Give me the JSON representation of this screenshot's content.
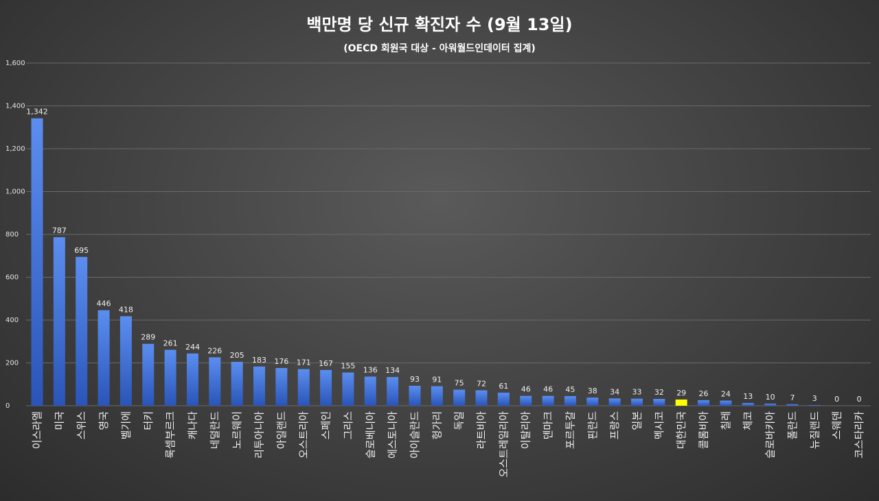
{
  "chart_data": {
    "type": "bar",
    "title": "백만명 당 신규 확진자 수 (9월 13일)",
    "subtitle": "(OECD 회원국 대상 - 아워월드인데이터 집계)",
    "categories": [
      "이스라엘",
      "미국",
      "스위스",
      "영국",
      "벨기에",
      "터키",
      "룩셈부르크",
      "캐나다",
      "네덜란드",
      "노르웨이",
      "리투아니아",
      "아일랜드",
      "오스트리아",
      "스페인",
      "그리스",
      "슬로베니아",
      "에스토니아",
      "아이슬란드",
      "헝가리",
      "독일",
      "라트비아",
      "오스트레일리아",
      "이탈리아",
      "덴마크",
      "포르투갈",
      "핀란드",
      "프랑스",
      "일본",
      "멕시코",
      "대한민국",
      "콜롬비아",
      "칠레",
      "체코",
      "슬로바키아",
      "폴란드",
      "뉴질랜드",
      "스웨덴",
      "코스타리카"
    ],
    "values": [
      1342,
      787,
      695,
      446,
      418,
      289,
      261,
      244,
      226,
      205,
      183,
      176,
      171,
      167,
      155,
      136,
      134,
      93,
      91,
      75,
      72,
      61,
      46,
      46,
      45,
      38,
      34,
      33,
      32,
      29,
      26,
      24,
      13,
      10,
      7,
      3,
      0,
      0
    ],
    "value_labels": [
      "1,342",
      "787",
      "695",
      "446",
      "418",
      "289",
      "261",
      "244",
      "226",
      "205",
      "183",
      "176",
      "171",
      "167",
      "155",
      "136",
      "134",
      "93",
      "91",
      "75",
      "72",
      "61",
      "46",
      "46",
      "45",
      "38",
      "34",
      "33",
      "32",
      "29",
      "26",
      "24",
      "13",
      "10",
      "7",
      "3",
      "0",
      "0"
    ],
    "ylim": [
      0,
      1600
    ],
    "yticks": [
      0,
      200,
      400,
      600,
      800,
      1000,
      1200,
      1400,
      1600
    ],
    "ytick_labels": [
      "0",
      "200",
      "400",
      "600",
      "800",
      "1,000",
      "1,200",
      "1,400",
      "1,600"
    ],
    "grid": true,
    "highlight_category": "대한민국",
    "colors": {
      "bar_top": "#5b8ef0",
      "bar_bottom": "#2a54b8",
      "highlight": "#ffff00",
      "grid": "#6a6a6a"
    }
  }
}
